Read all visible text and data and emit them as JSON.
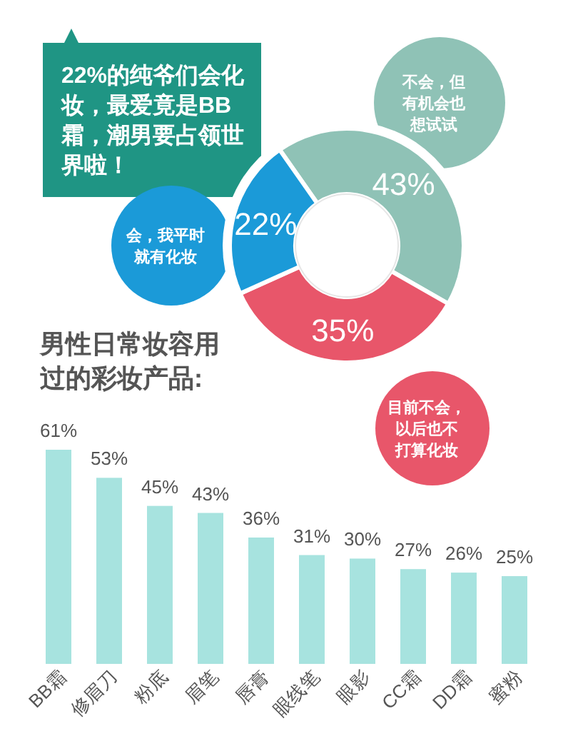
{
  "chart_data": [
    {
      "type": "donut",
      "title": "22%的纯爷们会化妆，最爱竟是BB霜，潮男要占领世界啦！",
      "categories": [
        "不会，但有机会也想试试",
        "目前不会，以后也不打算化妆",
        "会，我平时就有化妆"
      ],
      "values": [
        43,
        35,
        22
      ],
      "colors": [
        "#8fc2b6",
        "#e8566a",
        "#1b9ad8"
      ],
      "value_labels": [
        "43%",
        "35%",
        "22%"
      ]
    },
    {
      "type": "bar",
      "title": "男性日常妆容用过的彩妆产品:",
      "categories": [
        "BB霜",
        "修眉刀",
        "粉底",
        "眉笔",
        "唇膏",
        "眼线笔",
        "眼影",
        "CC霜",
        "DD霜",
        "蜜粉"
      ],
      "values": [
        61,
        53,
        45,
        43,
        36,
        31,
        30,
        27,
        26,
        25
      ],
      "color": "#a7e3df",
      "value_labels": [
        "61%",
        "53%",
        "45%",
        "43%",
        "36%",
        "31%",
        "30%",
        "27%",
        "26%",
        "25%"
      ]
    }
  ]
}
